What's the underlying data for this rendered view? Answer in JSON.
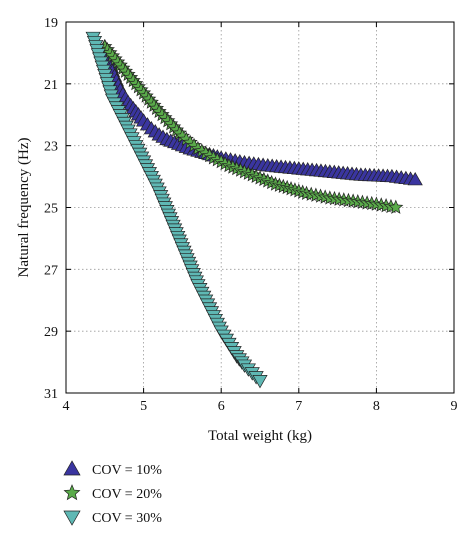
{
  "chart_data": {
    "type": "scatter",
    "title": "",
    "xlabel": "Total weight (kg)",
    "ylabel": "Natural frequency (Hz)",
    "xlim": [
      4,
      9
    ],
    "ylim": [
      19,
      31
    ],
    "y_inverted": true,
    "x_ticks": [
      4,
      5,
      6,
      7,
      8,
      9
    ],
    "y_ticks": [
      19,
      21,
      23,
      25,
      27,
      29,
      31
    ],
    "grid": true,
    "legend_position": "below-left",
    "series": [
      {
        "name": "COV = 10%",
        "marker": "triangle-up",
        "color": "#3a35a0",
        "points": [
          [
            4.5,
            19.8
          ],
          [
            4.55,
            20.2
          ],
          [
            4.6,
            20.6
          ],
          [
            4.65,
            20.9
          ],
          [
            4.7,
            21.2
          ],
          [
            4.8,
            21.6
          ],
          [
            4.9,
            21.9
          ],
          [
            5.0,
            22.2
          ],
          [
            5.1,
            22.45
          ],
          [
            5.2,
            22.65
          ],
          [
            5.3,
            22.8
          ],
          [
            5.45,
            22.95
          ],
          [
            5.6,
            23.1
          ],
          [
            5.8,
            23.25
          ],
          [
            6.0,
            23.4
          ],
          [
            6.3,
            23.55
          ],
          [
            6.6,
            23.65
          ],
          [
            7.0,
            23.75
          ],
          [
            7.4,
            23.85
          ],
          [
            7.8,
            23.95
          ],
          [
            8.2,
            24.0
          ],
          [
            8.5,
            24.1
          ]
        ]
      },
      {
        "name": "COV = 20%",
        "marker": "star",
        "color": "#5aab4a",
        "points": [
          [
            4.5,
            19.8
          ],
          [
            4.6,
            20.1
          ],
          [
            4.7,
            20.4
          ],
          [
            4.8,
            20.7
          ],
          [
            4.9,
            21.0
          ],
          [
            5.0,
            21.3
          ],
          [
            5.1,
            21.6
          ],
          [
            5.2,
            21.9
          ],
          [
            5.35,
            22.3
          ],
          [
            5.5,
            22.7
          ],
          [
            5.7,
            23.1
          ],
          [
            5.9,
            23.4
          ],
          [
            6.1,
            23.65
          ],
          [
            6.3,
            23.85
          ],
          [
            6.5,
            24.05
          ],
          [
            6.7,
            24.25
          ],
          [
            6.9,
            24.4
          ],
          [
            7.1,
            24.55
          ],
          [
            7.4,
            24.7
          ],
          [
            7.7,
            24.8
          ],
          [
            8.0,
            24.9
          ],
          [
            8.25,
            25.0
          ]
        ]
      },
      {
        "name": "COV = 30%",
        "marker": "triangle-down",
        "color": "#5fb8b4",
        "points": [
          [
            4.35,
            19.5
          ],
          [
            4.4,
            19.9
          ],
          [
            4.45,
            20.3
          ],
          [
            4.5,
            20.7
          ],
          [
            4.55,
            21.1
          ],
          [
            4.6,
            21.5
          ],
          [
            4.7,
            22.0
          ],
          [
            4.8,
            22.5
          ],
          [
            4.9,
            23.0
          ],
          [
            5.0,
            23.5
          ],
          [
            5.1,
            24.0
          ],
          [
            5.2,
            24.5
          ],
          [
            5.3,
            25.1
          ],
          [
            5.4,
            25.7
          ],
          [
            5.5,
            26.3
          ],
          [
            5.6,
            26.9
          ],
          [
            5.7,
            27.5
          ],
          [
            5.8,
            28.0
          ],
          [
            5.9,
            28.5
          ],
          [
            6.0,
            29.0
          ],
          [
            6.1,
            29.4
          ],
          [
            6.2,
            29.8
          ],
          [
            6.3,
            30.1
          ],
          [
            6.4,
            30.35
          ],
          [
            6.5,
            30.6
          ]
        ]
      }
    ]
  }
}
